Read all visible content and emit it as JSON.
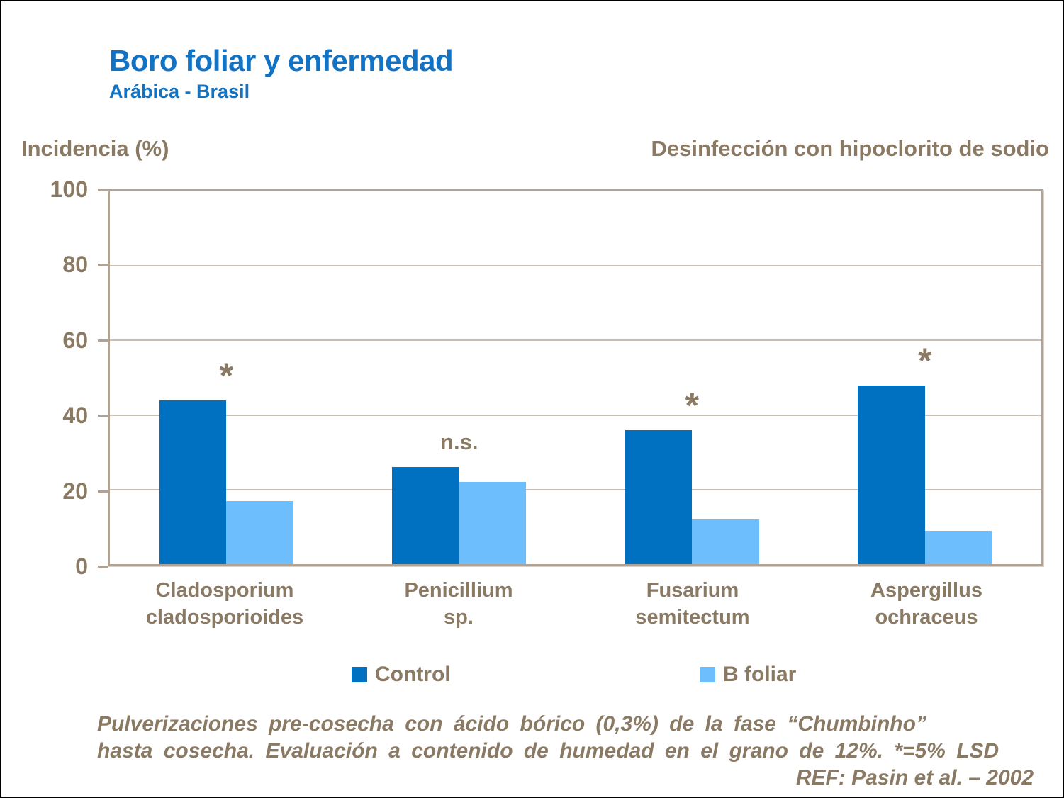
{
  "header": {
    "title": "Boro foliar y enfermedad",
    "subtitle": "Arábica - Brasil",
    "axis_title": "Incidencia (%)",
    "right_note": "Desinfección con hipoclorito de sodio"
  },
  "footer": {
    "line1": "Pulverizaciones pre-cosecha con ácido bórico (0,3%) de la fase “Chumbinho”",
    "line2": "hasta cosecha. Evaluación a contenido de humedad en el grano de 12%. *=5% LSD",
    "reference": "REF: Pasin et al. – 2002"
  },
  "colors": {
    "title_blue": "#1273C4",
    "text_brown": "#8A7963",
    "control_blue": "#0070C0",
    "bfoliar_blue": "#6CBEFC",
    "frame_tan": "#B0A294",
    "gridline_tan": "#C9BEB2"
  },
  "chart_data": {
    "type": "bar",
    "title": "Boro foliar y enfermedad",
    "subtitle": "Arábica - Brasil",
    "ylabel": "Incidencia (%)",
    "note": "Desinfección con hipoclorito de sodio",
    "categories": [
      "Cladosporium cladosporioides",
      "Penicillium sp.",
      "Fusarium semitectum",
      "Aspergillus ochraceus"
    ],
    "category_lines": [
      [
        "Cladosporium",
        "cladosporioides"
      ],
      [
        "Penicillium",
        "sp."
      ],
      [
        "Fusarium",
        "semitectum"
      ],
      [
        "Aspergillus",
        "ochraceus"
      ]
    ],
    "series": [
      {
        "name": "Control",
        "color": "#0070C0",
        "values": [
          44,
          26,
          36,
          48
        ]
      },
      {
        "name": "B foliar",
        "color": "#6CBEFC",
        "values": [
          17,
          22,
          12,
          9
        ]
      }
    ],
    "annotations": [
      "*",
      "n.s.",
      "*",
      "*"
    ],
    "yticks": [
      0,
      20,
      40,
      60,
      80,
      100
    ],
    "ylim": [
      0,
      100
    ],
    "grid": true,
    "legend_position": "bottom"
  }
}
